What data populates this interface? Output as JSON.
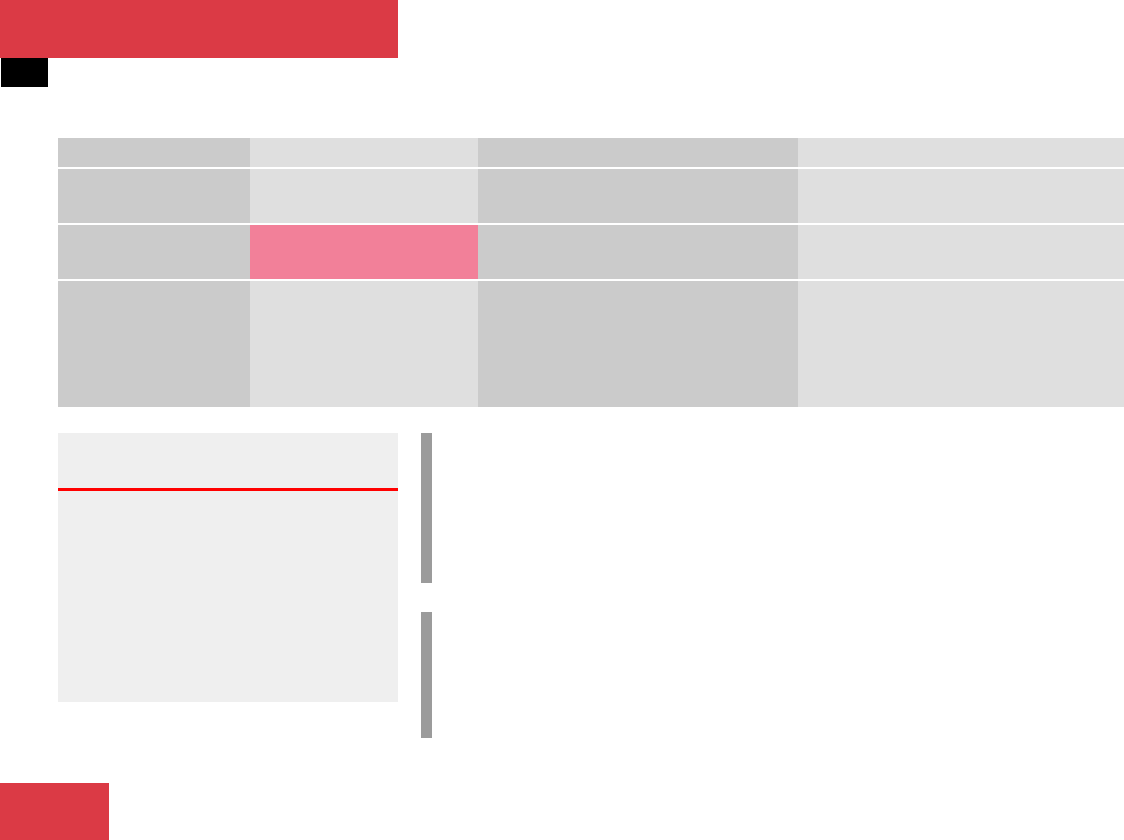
{
  "colors": {
    "header_red": "#db3a45",
    "tab_black": "#000000",
    "table_dark": "#cbcbcb",
    "table_light": "#dfdfdf",
    "highlight_pink": "#f28099",
    "note_box": "#efefef",
    "note_rule": "#ff0000",
    "margin_bar": "#9b9b9b"
  },
  "table": {
    "rows": [
      [
        "",
        "",
        "",
        ""
      ],
      [
        "",
        "",
        "",
        ""
      ],
      [
        "",
        "",
        "",
        ""
      ],
      [
        "",
        "",
        "",
        ""
      ]
    ],
    "highlighted_cell": {
      "row": 2,
      "column": 1
    }
  }
}
